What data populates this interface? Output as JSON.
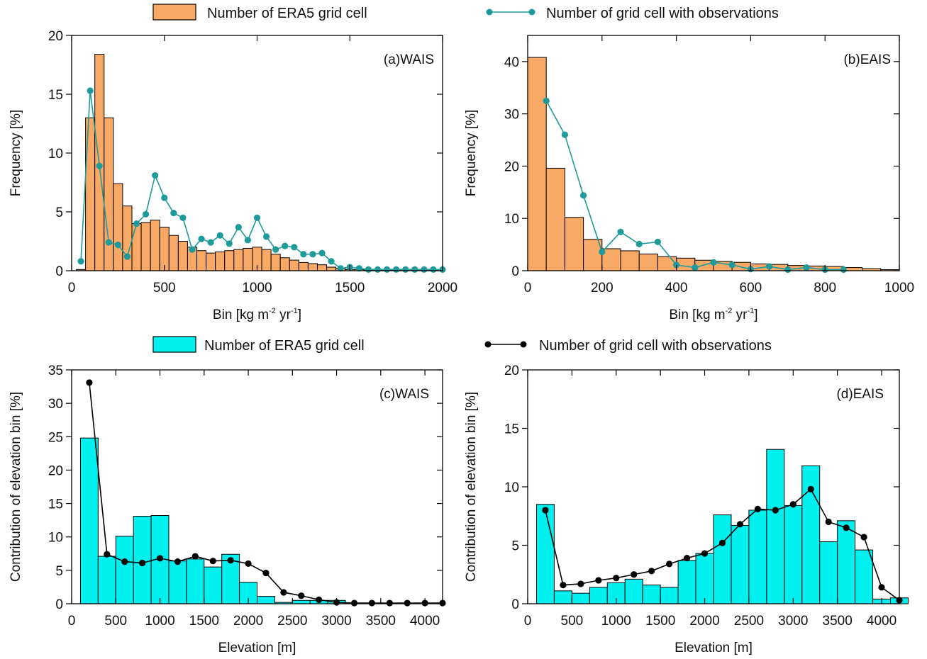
{
  "legend_top": {
    "bar_label": "Number of ERA5 grid cell",
    "line_label": "Number of grid cell with observations",
    "bar_color": "#f8a966",
    "line_color": "#1e9a9a"
  },
  "legend_bottom": {
    "bar_label": "Number of ERA5 grid cell",
    "line_label": "Number of grid cell with observations",
    "bar_color": "#00f0f0",
    "line_color": "#000000"
  },
  "chart_data": [
    {
      "type": "bar",
      "panel_label": "(a)WAIS",
      "xlabel": "Bin [kg m",
      "xlabel_sup": "-2",
      "xlabel_mid": " yr",
      "xlabel_sup2": "-1",
      "xlabel_end": "]",
      "ylabel": "Frequency [%]",
      "xlim": [
        0,
        2000
      ],
      "ylim": [
        0,
        20
      ],
      "xticks": [
        0,
        500,
        1000,
        1500,
        2000
      ],
      "yticks": [
        0,
        5,
        10,
        15,
        20
      ],
      "bar_width": 50,
      "bar_color": "#f8a966",
      "line_color": "#1e9a9a",
      "series": [
        {
          "name": "Number of ERA5 grid cell",
          "x": [
            50,
            100,
            150,
            200,
            250,
            300,
            350,
            400,
            450,
            500,
            550,
            600,
            650,
            700,
            750,
            800,
            850,
            900,
            950,
            1000,
            1050,
            1100,
            1150,
            1200,
            1250,
            1300,
            1350,
            1400,
            1450,
            1500,
            1550,
            1600,
            1650,
            1700,
            1750,
            1800,
            1850,
            1900,
            1950
          ],
          "values": [
            0.1,
            13.0,
            18.4,
            13.0,
            7.4,
            5.5,
            4.0,
            4.1,
            4.3,
            3.7,
            3.0,
            2.5,
            2.0,
            1.7,
            1.5,
            1.6,
            1.7,
            1.8,
            1.9,
            2.0,
            1.8,
            1.4,
            1.1,
            0.9,
            0.7,
            0.6,
            0.5,
            0.3,
            0.2,
            0.1,
            0.1,
            0.05,
            0.05,
            0.05,
            0.05,
            0.02,
            0.02,
            0.02,
            0.02
          ]
        },
        {
          "name": "Number of grid cell with observations",
          "x": [
            50,
            100,
            150,
            200,
            250,
            300,
            350,
            400,
            450,
            500,
            550,
            600,
            650,
            700,
            750,
            800,
            850,
            900,
            950,
            1000,
            1050,
            1100,
            1150,
            1200,
            1250,
            1300,
            1350,
            1400,
            1450,
            1500,
            1550,
            1600,
            1650,
            1700,
            1750,
            1800,
            1850,
            1900,
            1950,
            2000
          ],
          "values": [
            0.8,
            15.3,
            8.9,
            2.4,
            2.2,
            1.2,
            4.0,
            4.8,
            8.1,
            6.2,
            4.9,
            4.5,
            1.8,
            2.7,
            2.4,
            3.0,
            2.3,
            3.7,
            2.6,
            4.5,
            2.9,
            1.8,
            2.1,
            2.0,
            1.4,
            1.4,
            1.5,
            0.8,
            0.2,
            0.3,
            0.2,
            0.1,
            0.1,
            0.1,
            0.1,
            0.1,
            0.1,
            0.1,
            0.1,
            0.1
          ]
        }
      ]
    },
    {
      "type": "bar",
      "panel_label": "(b)EAIS",
      "xlabel": "Bin [kg m",
      "xlabel_sup": "-2",
      "xlabel_mid": " yr",
      "xlabel_sup2": "-1",
      "xlabel_end": "]",
      "ylabel": "Frequency [%]",
      "xlim": [
        0,
        1000
      ],
      "ylim": [
        0,
        45
      ],
      "xticks": [
        0,
        200,
        400,
        600,
        800,
        1000
      ],
      "yticks": [
        0,
        10,
        20,
        30,
        40
      ],
      "bar_width": 50,
      "bar_color": "#f8a966",
      "line_color": "#1e9a9a",
      "series": [
        {
          "name": "Number of ERA5 grid cell",
          "x": [
            25,
            75,
            125,
            175,
            225,
            275,
            325,
            375,
            425,
            475,
            525,
            575,
            625,
            675,
            725,
            775,
            825,
            875,
            925,
            975
          ],
          "values": [
            40.8,
            19.6,
            10.2,
            6.0,
            4.2,
            3.8,
            3.2,
            2.7,
            2.4,
            2.0,
            1.8,
            1.6,
            1.3,
            1.2,
            1.0,
            0.9,
            0.8,
            0.6,
            0.4,
            0.2
          ]
        },
        {
          "name": "Number of grid cell with observations",
          "x": [
            50,
            100,
            150,
            200,
            250,
            300,
            350,
            400,
            450,
            500,
            550,
            600,
            650,
            700,
            750,
            800,
            850
          ],
          "values": [
            32.5,
            26.0,
            14.4,
            3.6,
            7.4,
            5.1,
            5.5,
            1.1,
            0.6,
            1.6,
            1.1,
            0.3,
            0.8,
            0.2,
            0.6,
            0.2,
            0.2
          ]
        }
      ]
    },
    {
      "type": "bar",
      "panel_label": "(c)WAIS",
      "xlabel": "Elevation [m]",
      "ylabel": "Contribution of elevation bin [%]",
      "xlim": [
        0,
        4200
      ],
      "ylim": [
        0,
        35
      ],
      "xticks": [
        0,
        500,
        1000,
        1500,
        2000,
        2500,
        3000,
        3500,
        4000
      ],
      "yticks": [
        0,
        5,
        10,
        15,
        20,
        25,
        30,
        35
      ],
      "bar_width": 200,
      "bar_color": "#00f0f0",
      "line_color": "#000000",
      "series": [
        {
          "name": "Number of ERA5 grid cell",
          "x": [
            200,
            400,
            600,
            800,
            1000,
            1200,
            1400,
            1600,
            1800,
            2000,
            2200,
            2400,
            2600,
            2800,
            3000,
            3200,
            3400,
            3600,
            3800,
            4000
          ],
          "values": [
            24.8,
            7.1,
            10.1,
            13.1,
            13.2,
            6.4,
            6.7,
            5.5,
            7.4,
            3.2,
            1.1,
            0.2,
            0.5,
            0.5,
            0.5,
            0.1,
            0,
            0,
            0,
            0
          ]
        },
        {
          "name": "Number of grid cell with observations",
          "x": [
            200,
            400,
            600,
            800,
            1000,
            1200,
            1400,
            1600,
            1800,
            2000,
            2200,
            2400,
            2600,
            2800,
            3000,
            3200,
            3400,
            3600,
            3800,
            4000,
            4200
          ],
          "values": [
            33.1,
            7.4,
            6.3,
            6.1,
            6.8,
            6.3,
            7.1,
            6.4,
            6.5,
            6.0,
            4.6,
            1.7,
            1.2,
            0.6,
            0.2,
            0.1,
            0.1,
            0.1,
            0.1,
            0.1,
            0.1
          ]
        }
      ]
    },
    {
      "type": "bar",
      "panel_label": "(d)EAIS",
      "xlabel": "Elevation [m]",
      "ylabel": "Contribution of elevation bin [%]",
      "xlim": [
        0,
        4200
      ],
      "ylim": [
        0,
        20
      ],
      "xticks": [
        0,
        500,
        1000,
        1500,
        2000,
        2500,
        3000,
        3500,
        4000
      ],
      "yticks": [
        0,
        5,
        10,
        15,
        20
      ],
      "bar_width": 200,
      "bar_color": "#00f0f0",
      "line_color": "#000000",
      "series": [
        {
          "name": "Number of ERA5 grid cell",
          "x": [
            200,
            400,
            600,
            800,
            1000,
            1200,
            1400,
            1600,
            1800,
            2000,
            2200,
            2400,
            2600,
            2800,
            3000,
            3200,
            3400,
            3600,
            3800,
            4000,
            4200
          ],
          "values": [
            8.5,
            1.1,
            0.9,
            1.4,
            1.8,
            2.1,
            1.6,
            1.4,
            3.7,
            4.3,
            7.6,
            6.7,
            8.0,
            13.2,
            8.4,
            11.8,
            5.3,
            7.1,
            4.6,
            0.4,
            0.5
          ]
        },
        {
          "name": "Number of grid cell with observations",
          "x": [
            200,
            400,
            600,
            800,
            1000,
            1200,
            1400,
            1600,
            1800,
            2000,
            2200,
            2400,
            2600,
            2800,
            3000,
            3200,
            3400,
            3600,
            3800,
            4000,
            4200
          ],
          "values": [
            8.0,
            1.6,
            1.7,
            2.0,
            2.2,
            2.5,
            2.8,
            3.4,
            3.9,
            4.3,
            5.2,
            6.8,
            8.1,
            8.0,
            8.5,
            9.8,
            7.0,
            6.5,
            5.7,
            1.4,
            0.3
          ]
        }
      ]
    }
  ]
}
